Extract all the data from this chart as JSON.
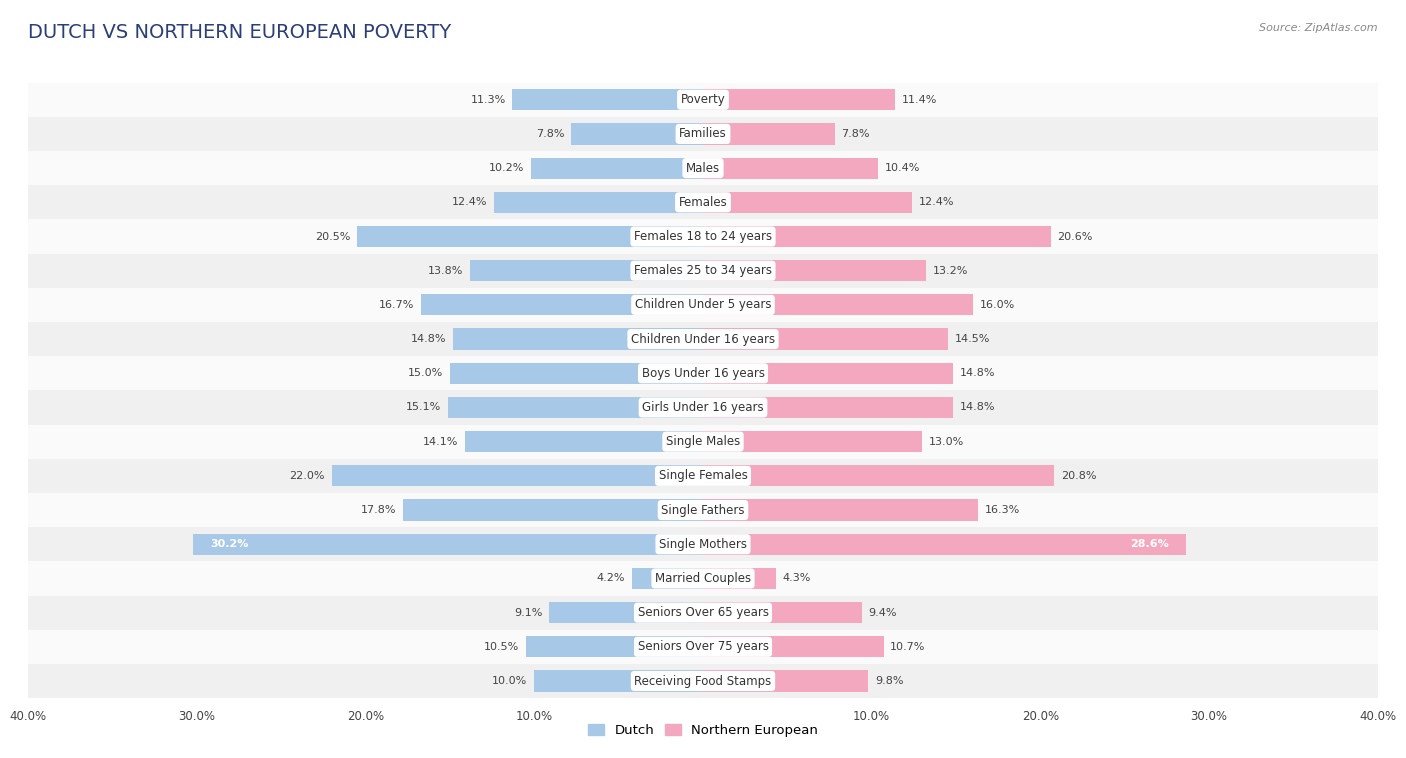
{
  "title": "DUTCH VS NORTHERN EUROPEAN POVERTY",
  "source": "Source: ZipAtlas.com",
  "categories": [
    "Poverty",
    "Families",
    "Males",
    "Females",
    "Females 18 to 24 years",
    "Females 25 to 34 years",
    "Children Under 5 years",
    "Children Under 16 years",
    "Boys Under 16 years",
    "Girls Under 16 years",
    "Single Males",
    "Single Females",
    "Single Fathers",
    "Single Mothers",
    "Married Couples",
    "Seniors Over 65 years",
    "Seniors Over 75 years",
    "Receiving Food Stamps"
  ],
  "dutch_values": [
    11.3,
    7.8,
    10.2,
    12.4,
    20.5,
    13.8,
    16.7,
    14.8,
    15.0,
    15.1,
    14.1,
    22.0,
    17.8,
    30.2,
    4.2,
    9.1,
    10.5,
    10.0
  ],
  "northern_values": [
    11.4,
    7.8,
    10.4,
    12.4,
    20.6,
    13.2,
    16.0,
    14.5,
    14.8,
    14.8,
    13.0,
    20.8,
    16.3,
    28.6,
    4.3,
    9.4,
    10.7,
    9.8
  ],
  "dutch_color": "#a8c8e8",
  "northern_color": "#f4a8c0",
  "dutch_label": "Dutch",
  "northern_label": "Northern European",
  "x_max": 40.0,
  "fig_bg": "#ffffff",
  "row_bg_odd": "#f0f0f0",
  "row_bg_even": "#fafafa",
  "title_color": "#2c3e7a",
  "title_fontsize": 14,
  "label_fontsize": 8.5,
  "value_fontsize": 8.0,
  "source_color": "#888888"
}
